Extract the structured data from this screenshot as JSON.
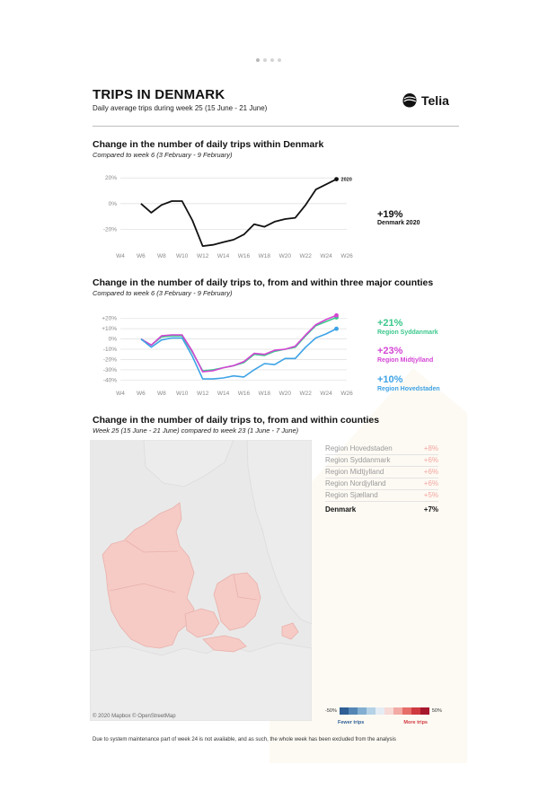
{
  "header": {
    "title": "TRIPS IN DENMARK",
    "subtitle": "Daily average trips during week 25 (15 June - 21 June)",
    "logo_text": "Telia"
  },
  "sections": {
    "s1": {
      "title": "Change in the number of daily trips within Denmark",
      "subtitle": "Compared to week 6 (3 February - 9 February)"
    },
    "s2": {
      "title": "Change in the number of daily trips to, from and within three major counties",
      "subtitle": "Compared to week 6 (3 February - 9 February)"
    },
    "s3": {
      "title": "Change in the number of daily trips to, from and within counties",
      "subtitle": "Week 25 (15 June - 21 June) compared to week 23 (1 June - 7 June)"
    }
  },
  "chart_data": [
    {
      "type": "line",
      "title": "Change in the number of daily trips within Denmark",
      "xlim": [
        4,
        26
      ],
      "ylim": [
        -35,
        25
      ],
      "x_ticks": [
        "W4",
        "W6",
        "W8",
        "W10",
        "W12",
        "W14",
        "W16",
        "W18",
        "W20",
        "W22",
        "W24",
        "W26"
      ],
      "y_ticks": [
        "20%",
        "0%",
        "-20%"
      ],
      "y_tick_values": [
        20,
        0,
        -20
      ],
      "series": [
        {
          "name": "2020",
          "color": "#111111",
          "x": [
            6,
            7,
            8,
            9,
            10,
            11,
            12,
            13,
            14,
            15,
            16,
            17,
            18,
            19,
            20,
            21,
            22,
            23,
            24,
            25
          ],
          "values": [
            0,
            -7,
            -1,
            2,
            2,
            -13,
            -33,
            -32,
            -30,
            -28,
            -24,
            -16,
            -18,
            -14,
            -12,
            -11,
            -1,
            11,
            15,
            19
          ]
        }
      ],
      "annotation": {
        "value": "+19%",
        "label": "Denmark 2020"
      }
    },
    {
      "type": "line",
      "title": "Change in the number of daily trips to, from and within three major counties",
      "xlim": [
        4,
        26
      ],
      "ylim": [
        -45,
        25
      ],
      "x_ticks": [
        "W4",
        "W6",
        "W8",
        "W10",
        "W12",
        "W14",
        "W16",
        "W18",
        "W20",
        "W22",
        "W24",
        "W26"
      ],
      "y_ticks": [
        "+20%",
        "+10%",
        "0%",
        "-10%",
        "-20%",
        "-30%",
        "-40%"
      ],
      "y_tick_values": [
        20,
        10,
        0,
        -10,
        -20,
        -30,
        -40
      ],
      "series": [
        {
          "name": "Region Syddanmark",
          "color": "#3cc88c",
          "value_label": "+21%",
          "x": [
            6,
            7,
            8,
            9,
            10,
            11,
            12,
            13,
            14,
            15,
            16,
            17,
            18,
            19,
            20,
            21,
            22,
            23,
            24,
            25
          ],
          "values": [
            0,
            -6,
            2,
            3,
            3,
            -13,
            -31,
            -30,
            -28,
            -26,
            -23,
            -15,
            -16,
            -12,
            -10,
            -8,
            3,
            13,
            17,
            21
          ]
        },
        {
          "name": "Region Midtjylland",
          "color": "#d446d4",
          "value_label": "+23%",
          "x": [
            6,
            7,
            8,
            9,
            10,
            11,
            12,
            13,
            14,
            15,
            16,
            17,
            18,
            19,
            20,
            21,
            22,
            23,
            24,
            25
          ],
          "values": [
            0,
            -6,
            3,
            4,
            4,
            -12,
            -32,
            -31,
            -28,
            -26,
            -22,
            -14,
            -15,
            -11,
            -10,
            -7,
            4,
            14,
            19,
            23
          ]
        },
        {
          "name": "Region Hovedstaden",
          "color": "#3ea3e6",
          "value_label": "+10%",
          "x": [
            6,
            7,
            8,
            9,
            10,
            11,
            12,
            13,
            14,
            15,
            16,
            17,
            18,
            19,
            20,
            21,
            22,
            23,
            24,
            25
          ],
          "values": [
            0,
            -8,
            -1,
            1,
            1,
            -17,
            -39,
            -39,
            -38,
            -36,
            -37,
            -30,
            -24,
            -25,
            -19,
            -19,
            -8,
            1,
            5,
            10
          ]
        }
      ]
    },
    {
      "type": "table",
      "title": "Change in the number of daily trips to, from and within counties",
      "rows": [
        {
          "region": "Region Hovedstaden",
          "value": "+8%"
        },
        {
          "region": "Region Syddanmark",
          "value": "+6%"
        },
        {
          "region": "Region Midtjylland",
          "value": "+6%"
        },
        {
          "region": "Region Nordjylland",
          "value": "+6%"
        },
        {
          "region": "Region Sjælland",
          "value": "+5%"
        }
      ],
      "total": {
        "region": "Denmark",
        "value": "+7%"
      },
      "legend": {
        "min": "-50%",
        "max": "50%",
        "low_label": "Fewer trips",
        "high_label": "More trips",
        "colors": [
          "#2f5f94",
          "#5486b5",
          "#82aed1",
          "#b5d2e6",
          "#e4edf4",
          "#f7d9d6",
          "#f2aaa4",
          "#e66d68",
          "#cf3a40",
          "#a8182d"
        ]
      }
    }
  ],
  "map": {
    "credit": "© 2020 Mapbox © OpenStreetMap",
    "land_color": "#f6cbc6",
    "region_border_color": "#e9b0aa",
    "background_color": "#e9e9e9",
    "other_land_color": "#ececec"
  },
  "footnote": "Due to system maintenance part of week 24 is not available, and as such, the whole week has been excluded from the analysis"
}
